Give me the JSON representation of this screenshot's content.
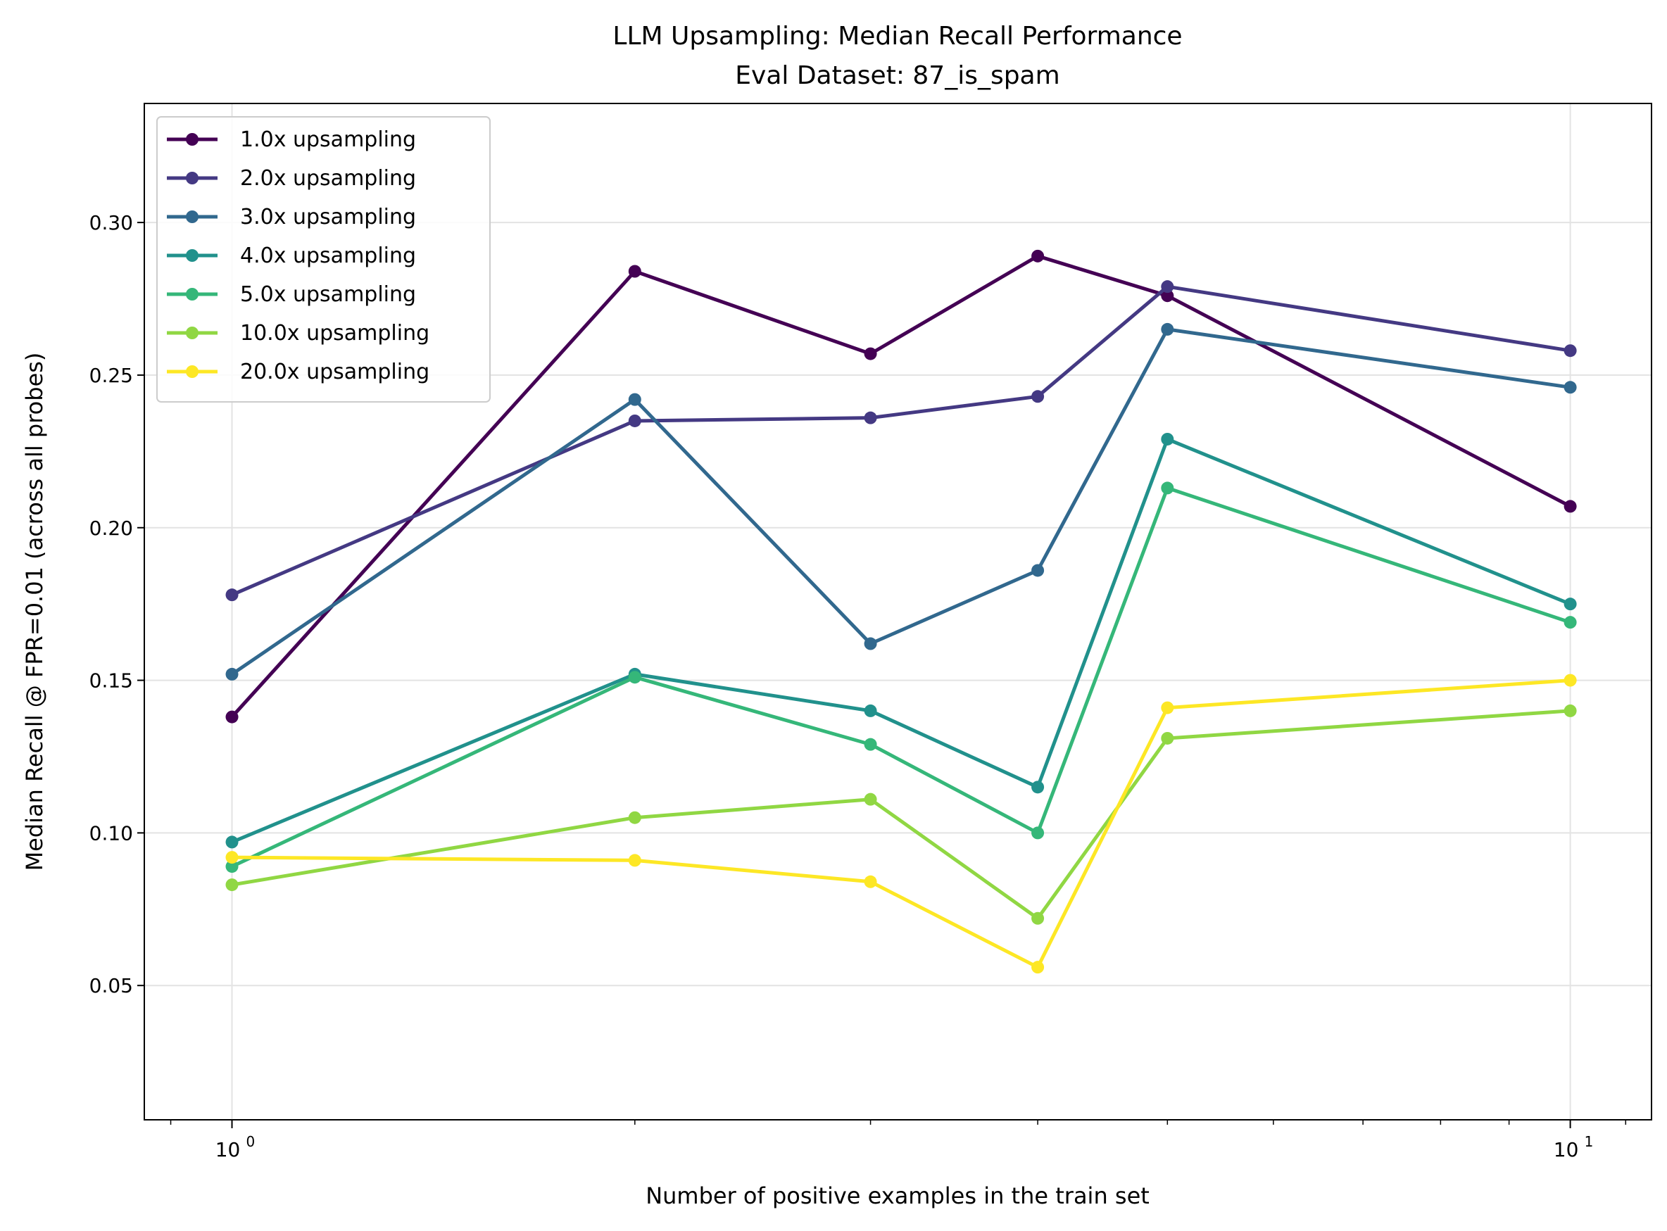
{
  "chart_data": {
    "type": "line",
    "title": "LLM Upsampling: Median Recall Performance",
    "subtitle": "Eval Dataset: 87_is_spam",
    "xlabel": "Number of positive examples in the train set",
    "ylabel": "Median Recall @ FPR=0.01 (across all probes)",
    "x_scale": "log",
    "xlim": [
      0.86,
      11.5
    ],
    "ylim": [
      0.006,
      0.339
    ],
    "x_ticks": [
      {
        "value": 1,
        "label": "10",
        "sup": "0"
      },
      {
        "value": 10,
        "label": "10",
        "sup": "1"
      }
    ],
    "y_ticks": [
      0.05,
      0.1,
      0.15,
      0.2,
      0.25,
      0.3
    ],
    "y_tick_labels": [
      "0.05",
      "0.10",
      "0.15",
      "0.20",
      "0.25",
      "0.30"
    ],
    "grid": true,
    "legend_position": "top-left",
    "x": [
      1,
      2,
      3,
      4,
      5,
      10
    ],
    "series": [
      {
        "name": "1.0x upsampling",
        "color": "#440154",
        "values": [
          0.138,
          0.284,
          0.257,
          0.289,
          0.276,
          0.207
        ]
      },
      {
        "name": "2.0x upsampling",
        "color": "#443983",
        "values": [
          0.178,
          0.235,
          0.236,
          0.243,
          0.279,
          0.258
        ]
      },
      {
        "name": "3.0x upsampling",
        "color": "#31688e",
        "values": [
          0.152,
          0.242,
          0.162,
          0.186,
          0.265,
          0.246
        ]
      },
      {
        "name": "4.0x upsampling",
        "color": "#21918c",
        "values": [
          0.097,
          0.152,
          0.14,
          0.115,
          0.229,
          0.175
        ]
      },
      {
        "name": "5.0x upsampling",
        "color": "#35b779",
        "values": [
          0.089,
          0.151,
          0.129,
          0.1,
          0.213,
          0.169
        ]
      },
      {
        "name": "10.0x upsampling",
        "color": "#90d743",
        "values": [
          0.083,
          0.105,
          0.111,
          0.072,
          0.131,
          0.14
        ]
      },
      {
        "name": "20.0x upsampling",
        "color": "#fde725",
        "values": [
          0.092,
          0.091,
          0.084,
          0.056,
          0.141,
          0.15
        ]
      }
    ]
  }
}
